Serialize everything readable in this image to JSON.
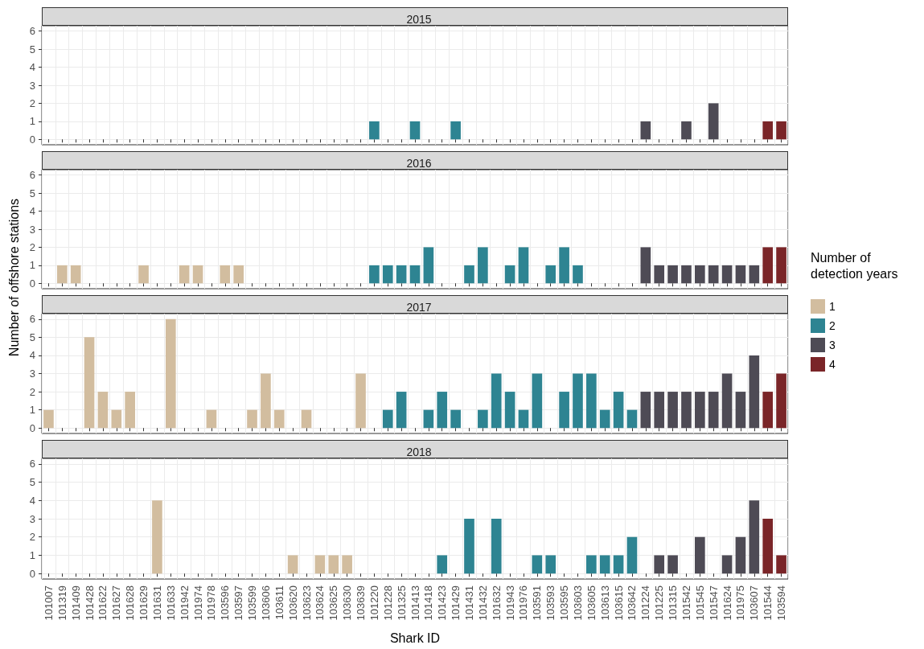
{
  "chart_data": [
    {
      "type": "bar",
      "title": "2015",
      "categories": [
        "101007",
        "101319",
        "101409",
        "101428",
        "101622",
        "101627",
        "101628",
        "101629",
        "101631",
        "101633",
        "101942",
        "101974",
        "101978",
        "103596",
        "103597",
        "103599",
        "103606",
        "103611",
        "103620",
        "103623",
        "103624",
        "103625",
        "103630",
        "103639",
        "101220",
        "101228",
        "101325",
        "101413",
        "101418",
        "101423",
        "101429",
        "101431",
        "101432",
        "101632",
        "101943",
        "101976",
        "103591",
        "103593",
        "103595",
        "103603",
        "103605",
        "103613",
        "103615",
        "103642",
        "101224",
        "101225",
        "101315",
        "101542",
        "101545",
        "101547",
        "101624",
        "101975",
        "103607",
        "101544",
        "103594"
      ],
      "series": [
        {
          "color": "#d2bd9f",
          "values": [
            null,
            null,
            null,
            null,
            null,
            null,
            null,
            null,
            null,
            null,
            null,
            null,
            null,
            null,
            null,
            null,
            null,
            null,
            null,
            null,
            null,
            null,
            null,
            null,
            null,
            null,
            null,
            null,
            null,
            null,
            null,
            null,
            null,
            null,
            null,
            null,
            null,
            null,
            null,
            null,
            null,
            null,
            null,
            null,
            null,
            null,
            null,
            null,
            null,
            null,
            null,
            null,
            null,
            null,
            null
          ]
        },
        {
          "color": "#2e8492",
          "values": [
            null,
            null,
            null,
            null,
            null,
            null,
            null,
            null,
            null,
            null,
            null,
            null,
            null,
            null,
            null,
            null,
            null,
            null,
            null,
            null,
            null,
            null,
            null,
            null,
            1,
            null,
            null,
            1,
            null,
            null,
            1,
            null,
            null,
            null,
            null,
            null,
            null,
            null,
            null,
            null,
            null,
            null,
            null,
            null,
            null,
            null,
            null,
            null,
            null,
            null,
            null,
            null,
            null,
            null,
            null
          ]
        },
        {
          "color": "#4e4b55",
          "values": [
            null,
            null,
            null,
            null,
            null,
            null,
            null,
            null,
            null,
            null,
            null,
            null,
            null,
            null,
            null,
            null,
            null,
            null,
            null,
            null,
            null,
            null,
            null,
            null,
            null,
            null,
            null,
            null,
            null,
            null,
            null,
            null,
            null,
            null,
            null,
            null,
            null,
            null,
            null,
            null,
            null,
            null,
            null,
            null,
            1,
            null,
            null,
            1,
            null,
            2,
            null,
            null,
            null,
            null,
            null
          ]
        },
        {
          "color": "#7a2528",
          "values": [
            null,
            null,
            null,
            null,
            null,
            null,
            null,
            null,
            null,
            null,
            null,
            null,
            null,
            null,
            null,
            null,
            null,
            null,
            null,
            null,
            null,
            null,
            null,
            null,
            null,
            null,
            null,
            null,
            null,
            null,
            null,
            null,
            null,
            null,
            null,
            null,
            null,
            null,
            null,
            null,
            null,
            null,
            null,
            null,
            null,
            null,
            null,
            null,
            null,
            null,
            null,
            null,
            null,
            1,
            1
          ]
        }
      ],
      "ylim": [
        -0.3,
        6.3
      ],
      "yticks": [
        0,
        1,
        2,
        3,
        4,
        5,
        6
      ],
      "grid": true,
      "tick_labels": "y",
      "legend": false
    },
    {
      "type": "bar",
      "title": "2016",
      "ylabel": "Number of offshore stations",
      "legend_title": "Number of detection years",
      "legend": "right",
      "categories": [
        "101007",
        "101319",
        "101409",
        "101428",
        "101622",
        "101627",
        "101628",
        "101629",
        "101631",
        "101633",
        "101942",
        "101974",
        "101978",
        "103596",
        "103597",
        "103599",
        "103606",
        "103611",
        "103620",
        "103623",
        "103624",
        "103625",
        "103630",
        "103639",
        "101220",
        "101228",
        "101325",
        "101413",
        "101418",
        "101423",
        "101429",
        "101431",
        "101432",
        "101632",
        "101943",
        "101976",
        "103591",
        "103593",
        "103595",
        "103603",
        "103605",
        "103613",
        "103615",
        "103642",
        "101224",
        "101225",
        "101315",
        "101542",
        "101545",
        "101547",
        "101624",
        "101975",
        "103607",
        "101544",
        "103594"
      ],
      "series": [
        {
          "name": "1",
          "color": "#d2bd9f",
          "values": [
            null,
            1,
            1,
            null,
            null,
            null,
            null,
            1,
            null,
            null,
            1,
            1,
            null,
            1,
            1,
            null,
            null,
            null,
            null,
            null,
            null,
            null,
            null,
            null,
            null,
            null,
            null,
            null,
            null,
            null,
            null,
            null,
            null,
            null,
            null,
            null,
            null,
            null,
            null,
            null,
            null,
            null,
            null,
            null,
            null,
            null,
            null,
            null,
            null,
            null,
            null,
            null,
            null,
            null,
            null
          ]
        },
        {
          "name": "2",
          "color": "#2e8492",
          "values": [
            null,
            null,
            null,
            null,
            null,
            null,
            null,
            null,
            null,
            null,
            null,
            null,
            null,
            null,
            null,
            null,
            null,
            null,
            null,
            null,
            null,
            null,
            null,
            null,
            1,
            1,
            1,
            1,
            2,
            null,
            null,
            1,
            2,
            null,
            1,
            2,
            null,
            1,
            2,
            1,
            null,
            null,
            null,
            null,
            null,
            null,
            null,
            null,
            null,
            null,
            null,
            null,
            null,
            null,
            null
          ]
        },
        {
          "name": "3",
          "color": "#4e4b55",
          "values": [
            null,
            null,
            null,
            null,
            null,
            null,
            null,
            null,
            null,
            null,
            null,
            null,
            null,
            null,
            null,
            null,
            null,
            null,
            null,
            null,
            null,
            null,
            null,
            null,
            null,
            null,
            null,
            null,
            null,
            null,
            null,
            null,
            null,
            null,
            null,
            null,
            null,
            null,
            null,
            null,
            null,
            null,
            null,
            null,
            2,
            1,
            1,
            1,
            1,
            1,
            1,
            1,
            1,
            null,
            null
          ]
        },
        {
          "name": "4",
          "color": "#7a2528",
          "values": [
            null,
            null,
            null,
            null,
            null,
            null,
            null,
            null,
            null,
            null,
            null,
            null,
            null,
            null,
            null,
            null,
            null,
            null,
            null,
            null,
            null,
            null,
            null,
            null,
            null,
            null,
            null,
            null,
            null,
            null,
            null,
            null,
            null,
            null,
            null,
            null,
            null,
            null,
            null,
            null,
            null,
            null,
            null,
            null,
            null,
            null,
            null,
            null,
            null,
            null,
            null,
            null,
            null,
            2,
            2
          ]
        }
      ],
      "ylim": [
        -0.3,
        6.3
      ],
      "yticks": [
        0,
        1,
        2,
        3,
        4,
        5,
        6
      ],
      "grid": true,
      "tick_labels": "y"
    },
    {
      "type": "bar",
      "title": "2017",
      "categories": [
        "101007",
        "101319",
        "101409",
        "101428",
        "101622",
        "101627",
        "101628",
        "101629",
        "101631",
        "101633",
        "101942",
        "101974",
        "101978",
        "103596",
        "103597",
        "103599",
        "103606",
        "103611",
        "103620",
        "103623",
        "103624",
        "103625",
        "103630",
        "103639",
        "101220",
        "101228",
        "101325",
        "101413",
        "101418",
        "101423",
        "101429",
        "101431",
        "101432",
        "101632",
        "101943",
        "101976",
        "103591",
        "103593",
        "103595",
        "103603",
        "103605",
        "103613",
        "103615",
        "103642",
        "101224",
        "101225",
        "101315",
        "101542",
        "101545",
        "101547",
        "101624",
        "101975",
        "103607",
        "101544",
        "103594"
      ],
      "series": [
        {
          "color": "#d2bd9f",
          "values": [
            1,
            null,
            null,
            5,
            2,
            1,
            2,
            null,
            null,
            6,
            null,
            null,
            1,
            null,
            null,
            1,
            3,
            1,
            null,
            1,
            null,
            null,
            null,
            3,
            null,
            null,
            null,
            null,
            null,
            null,
            null,
            null,
            null,
            null,
            null,
            null,
            null,
            null,
            null,
            null,
            null,
            null,
            null,
            null,
            null,
            null,
            null,
            null,
            null,
            null,
            null,
            null,
            null,
            null,
            null
          ]
        },
        {
          "color": "#2e8492",
          "values": [
            null,
            null,
            null,
            null,
            null,
            null,
            null,
            null,
            null,
            null,
            null,
            null,
            null,
            null,
            null,
            null,
            null,
            null,
            null,
            null,
            null,
            null,
            null,
            null,
            null,
            1,
            2,
            null,
            1,
            2,
            1,
            null,
            1,
            3,
            2,
            1,
            3,
            null,
            2,
            3,
            3,
            1,
            2,
            1,
            null,
            null,
            null,
            null,
            null,
            null,
            null,
            null,
            null,
            null,
            null
          ]
        },
        {
          "color": "#4e4b55",
          "values": [
            null,
            null,
            null,
            null,
            null,
            null,
            null,
            null,
            null,
            null,
            null,
            null,
            null,
            null,
            null,
            null,
            null,
            null,
            null,
            null,
            null,
            null,
            null,
            null,
            null,
            null,
            null,
            null,
            null,
            null,
            null,
            null,
            null,
            null,
            null,
            null,
            null,
            null,
            null,
            null,
            null,
            null,
            null,
            null,
            2,
            2,
            2,
            2,
            2,
            2,
            3,
            2,
            4,
            null,
            null
          ]
        },
        {
          "color": "#7a2528",
          "values": [
            null,
            null,
            null,
            null,
            null,
            null,
            null,
            null,
            null,
            null,
            null,
            null,
            null,
            null,
            null,
            null,
            null,
            null,
            null,
            null,
            null,
            null,
            null,
            null,
            null,
            null,
            null,
            null,
            null,
            null,
            null,
            null,
            null,
            null,
            null,
            null,
            null,
            null,
            null,
            null,
            null,
            null,
            null,
            null,
            null,
            null,
            null,
            null,
            null,
            null,
            null,
            null,
            null,
            2,
            3
          ]
        }
      ],
      "ylim": [
        -0.3,
        6.3
      ],
      "yticks": [
        0,
        1,
        2,
        3,
        4,
        5,
        6
      ],
      "grid": true,
      "tick_labels": "y",
      "legend": false
    },
    {
      "type": "bar",
      "title": "2018",
      "xlabel": "Shark ID",
      "categories": [
        "101007",
        "101319",
        "101409",
        "101428",
        "101622",
        "101627",
        "101628",
        "101629",
        "101631",
        "101633",
        "101942",
        "101974",
        "101978",
        "103596",
        "103597",
        "103599",
        "103606",
        "103611",
        "103620",
        "103623",
        "103624",
        "103625",
        "103630",
        "103639",
        "101220",
        "101228",
        "101325",
        "101413",
        "101418",
        "101423",
        "101429",
        "101431",
        "101432",
        "101632",
        "101943",
        "101976",
        "103591",
        "103593",
        "103595",
        "103603",
        "103605",
        "103613",
        "103615",
        "103642",
        "101224",
        "101225",
        "101315",
        "101542",
        "101545",
        "101547",
        "101624",
        "101975",
        "103607",
        "101544",
        "103594"
      ],
      "series": [
        {
          "color": "#d2bd9f",
          "values": [
            null,
            null,
            null,
            null,
            null,
            null,
            null,
            null,
            4,
            null,
            null,
            null,
            null,
            null,
            null,
            null,
            null,
            null,
            1,
            null,
            1,
            1,
            1,
            null,
            null,
            null,
            null,
            null,
            null,
            null,
            null,
            null,
            null,
            null,
            null,
            null,
            null,
            null,
            null,
            null,
            null,
            null,
            null,
            null,
            null,
            null,
            null,
            null,
            null,
            null,
            null,
            null,
            null,
            null,
            null
          ]
        },
        {
          "color": "#2e8492",
          "values": [
            null,
            null,
            null,
            null,
            null,
            null,
            null,
            null,
            null,
            null,
            null,
            null,
            null,
            null,
            null,
            null,
            null,
            null,
            null,
            null,
            null,
            null,
            null,
            null,
            null,
            null,
            null,
            null,
            null,
            1,
            null,
            3,
            null,
            3,
            null,
            null,
            1,
            1,
            null,
            null,
            1,
            1,
            1,
            2,
            null,
            null,
            null,
            null,
            null,
            null,
            null,
            null,
            null,
            null,
            null
          ]
        },
        {
          "color": "#4e4b55",
          "values": [
            null,
            null,
            null,
            null,
            null,
            null,
            null,
            null,
            null,
            null,
            null,
            null,
            null,
            null,
            null,
            null,
            null,
            null,
            null,
            null,
            null,
            null,
            null,
            null,
            null,
            null,
            null,
            null,
            null,
            null,
            null,
            null,
            null,
            null,
            null,
            null,
            null,
            null,
            null,
            null,
            null,
            null,
            null,
            null,
            null,
            1,
            1,
            null,
            2,
            null,
            1,
            2,
            4,
            null,
            null
          ]
        },
        {
          "color": "#7a2528",
          "values": [
            null,
            null,
            null,
            null,
            null,
            null,
            null,
            null,
            null,
            null,
            null,
            null,
            null,
            null,
            null,
            null,
            null,
            null,
            null,
            null,
            null,
            null,
            null,
            null,
            null,
            null,
            null,
            null,
            null,
            null,
            null,
            null,
            null,
            null,
            null,
            null,
            null,
            null,
            null,
            null,
            null,
            null,
            null,
            null,
            null,
            null,
            null,
            null,
            null,
            null,
            null,
            null,
            null,
            3,
            1
          ]
        }
      ],
      "ylim": [
        -0.3,
        6.3
      ],
      "yticks": [
        0,
        1,
        2,
        3,
        4,
        5,
        6
      ],
      "grid": true,
      "legend": false
    }
  ]
}
